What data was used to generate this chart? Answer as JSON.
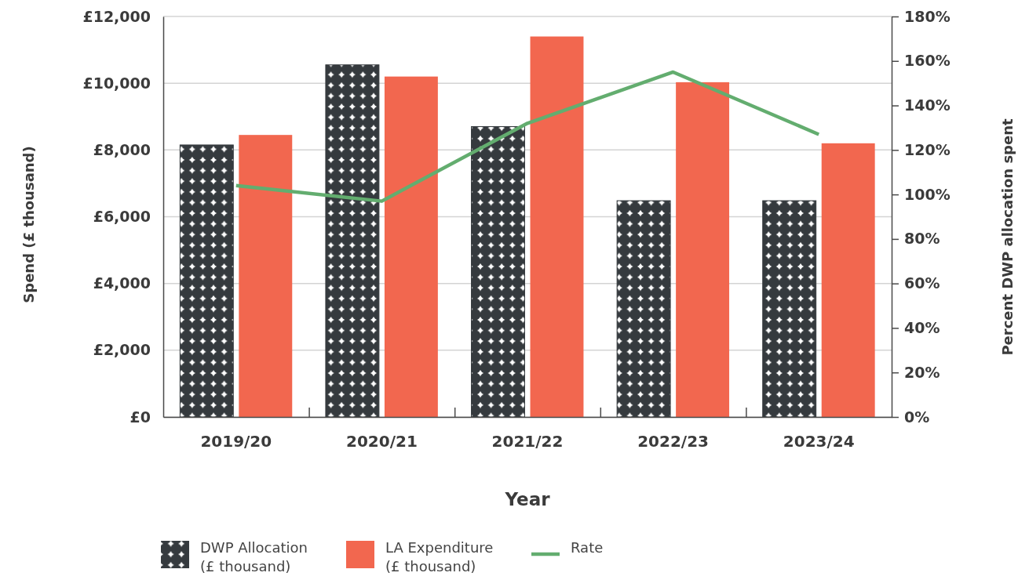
{
  "chart_data": {
    "type": "bar",
    "categories": [
      "2019/20",
      "2020/21",
      "2021/22",
      "2022/23",
      "2023/24"
    ],
    "series": [
      {
        "name": "DWP Allocation (£ thousand)",
        "color": "#353a3e",
        "values": [
          8150,
          10550,
          8700,
          6480,
          6480
        ]
      },
      {
        "name": "LA Expenditure (£ thousand)",
        "color": "#f2674f",
        "values": [
          8450,
          10200,
          11400,
          10030,
          8200
        ]
      },
      {
        "name": "Rate",
        "type": "line",
        "axis": "y2",
        "color": "#63ad6f",
        "values": [
          104,
          97,
          132,
          155,
          127
        ]
      }
    ],
    "xlabel": "Year",
    "ylabel": "Spend (£ thousand)",
    "y2label": "Percent DWP allocation spent",
    "ylim": [
      0,
      12000
    ],
    "yticks": [
      {
        "value": 0,
        "label": "£0"
      },
      {
        "value": 2000,
        "label": "£2,000"
      },
      {
        "value": 4000,
        "label": "£4,000"
      },
      {
        "value": 6000,
        "label": "£6,000"
      },
      {
        "value": 8000,
        "label": "£8,000"
      },
      {
        "value": 10000,
        "label": "£10,000"
      },
      {
        "value": 12000,
        "label": "£12,000"
      }
    ],
    "y2lim": [
      0,
      180
    ],
    "y2ticks": [
      {
        "value": 0,
        "label": "0%"
      },
      {
        "value": 20,
        "label": "20%"
      },
      {
        "value": 40,
        "label": "40%"
      },
      {
        "value": 60,
        "label": "60%"
      },
      {
        "value": 80,
        "label": "80%"
      },
      {
        "value": 100,
        "label": "100%"
      },
      {
        "value": 120,
        "label": "120%"
      },
      {
        "value": 140,
        "label": "140%"
      },
      {
        "value": 160,
        "label": "160%"
      },
      {
        "value": 180,
        "label": "180%"
      }
    ],
    "grid": "y",
    "legend": "bottom"
  }
}
